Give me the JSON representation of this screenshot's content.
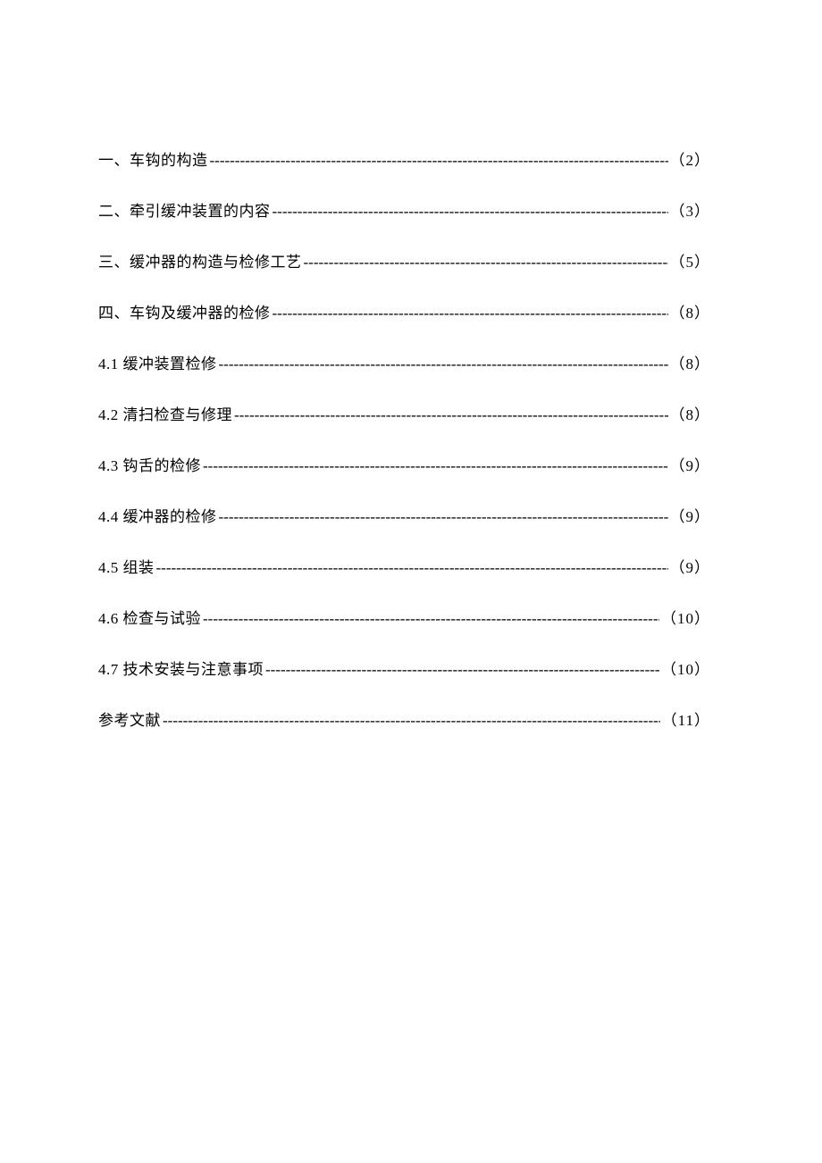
{
  "toc": {
    "background_color": "#ffffff",
    "text_color": "#000000",
    "font_size": 17,
    "font_family": "SimSun",
    "line_spacing": 32,
    "entries": [
      {
        "label": "一、车钩的构造",
        "page": "（2）"
      },
      {
        "label": "二、牵引缓冲装置的内容",
        "page": "（3）"
      },
      {
        "label": "三、缓冲器的构造与检修工艺",
        "page": "（5）"
      },
      {
        "label": "四、车钩及缓冲器的检修 ",
        "page": "（8）"
      },
      {
        "label": "4.1 缓冲装置检修 ",
        "page": "（8）"
      },
      {
        "label": "4.2 清扫检查与修理 ",
        "page": "（8）"
      },
      {
        "label": "4.3 钩舌的检修 ",
        "page": "（9）"
      },
      {
        "label": "4.4 缓冲器的检修 ",
        "page": "（9）"
      },
      {
        "label": "4.5 组装 ",
        "page": "（9）"
      },
      {
        "label": "4.6 检查与试验 ",
        "page": "（10）"
      },
      {
        "label": "4.7 技术安装与注意事项 ",
        "page": "（10）"
      },
      {
        "label": "参考文献 ",
        "page": "（11）"
      }
    ],
    "dash_fill": "------------------------------------------------------------------------------------------------------------------------"
  }
}
